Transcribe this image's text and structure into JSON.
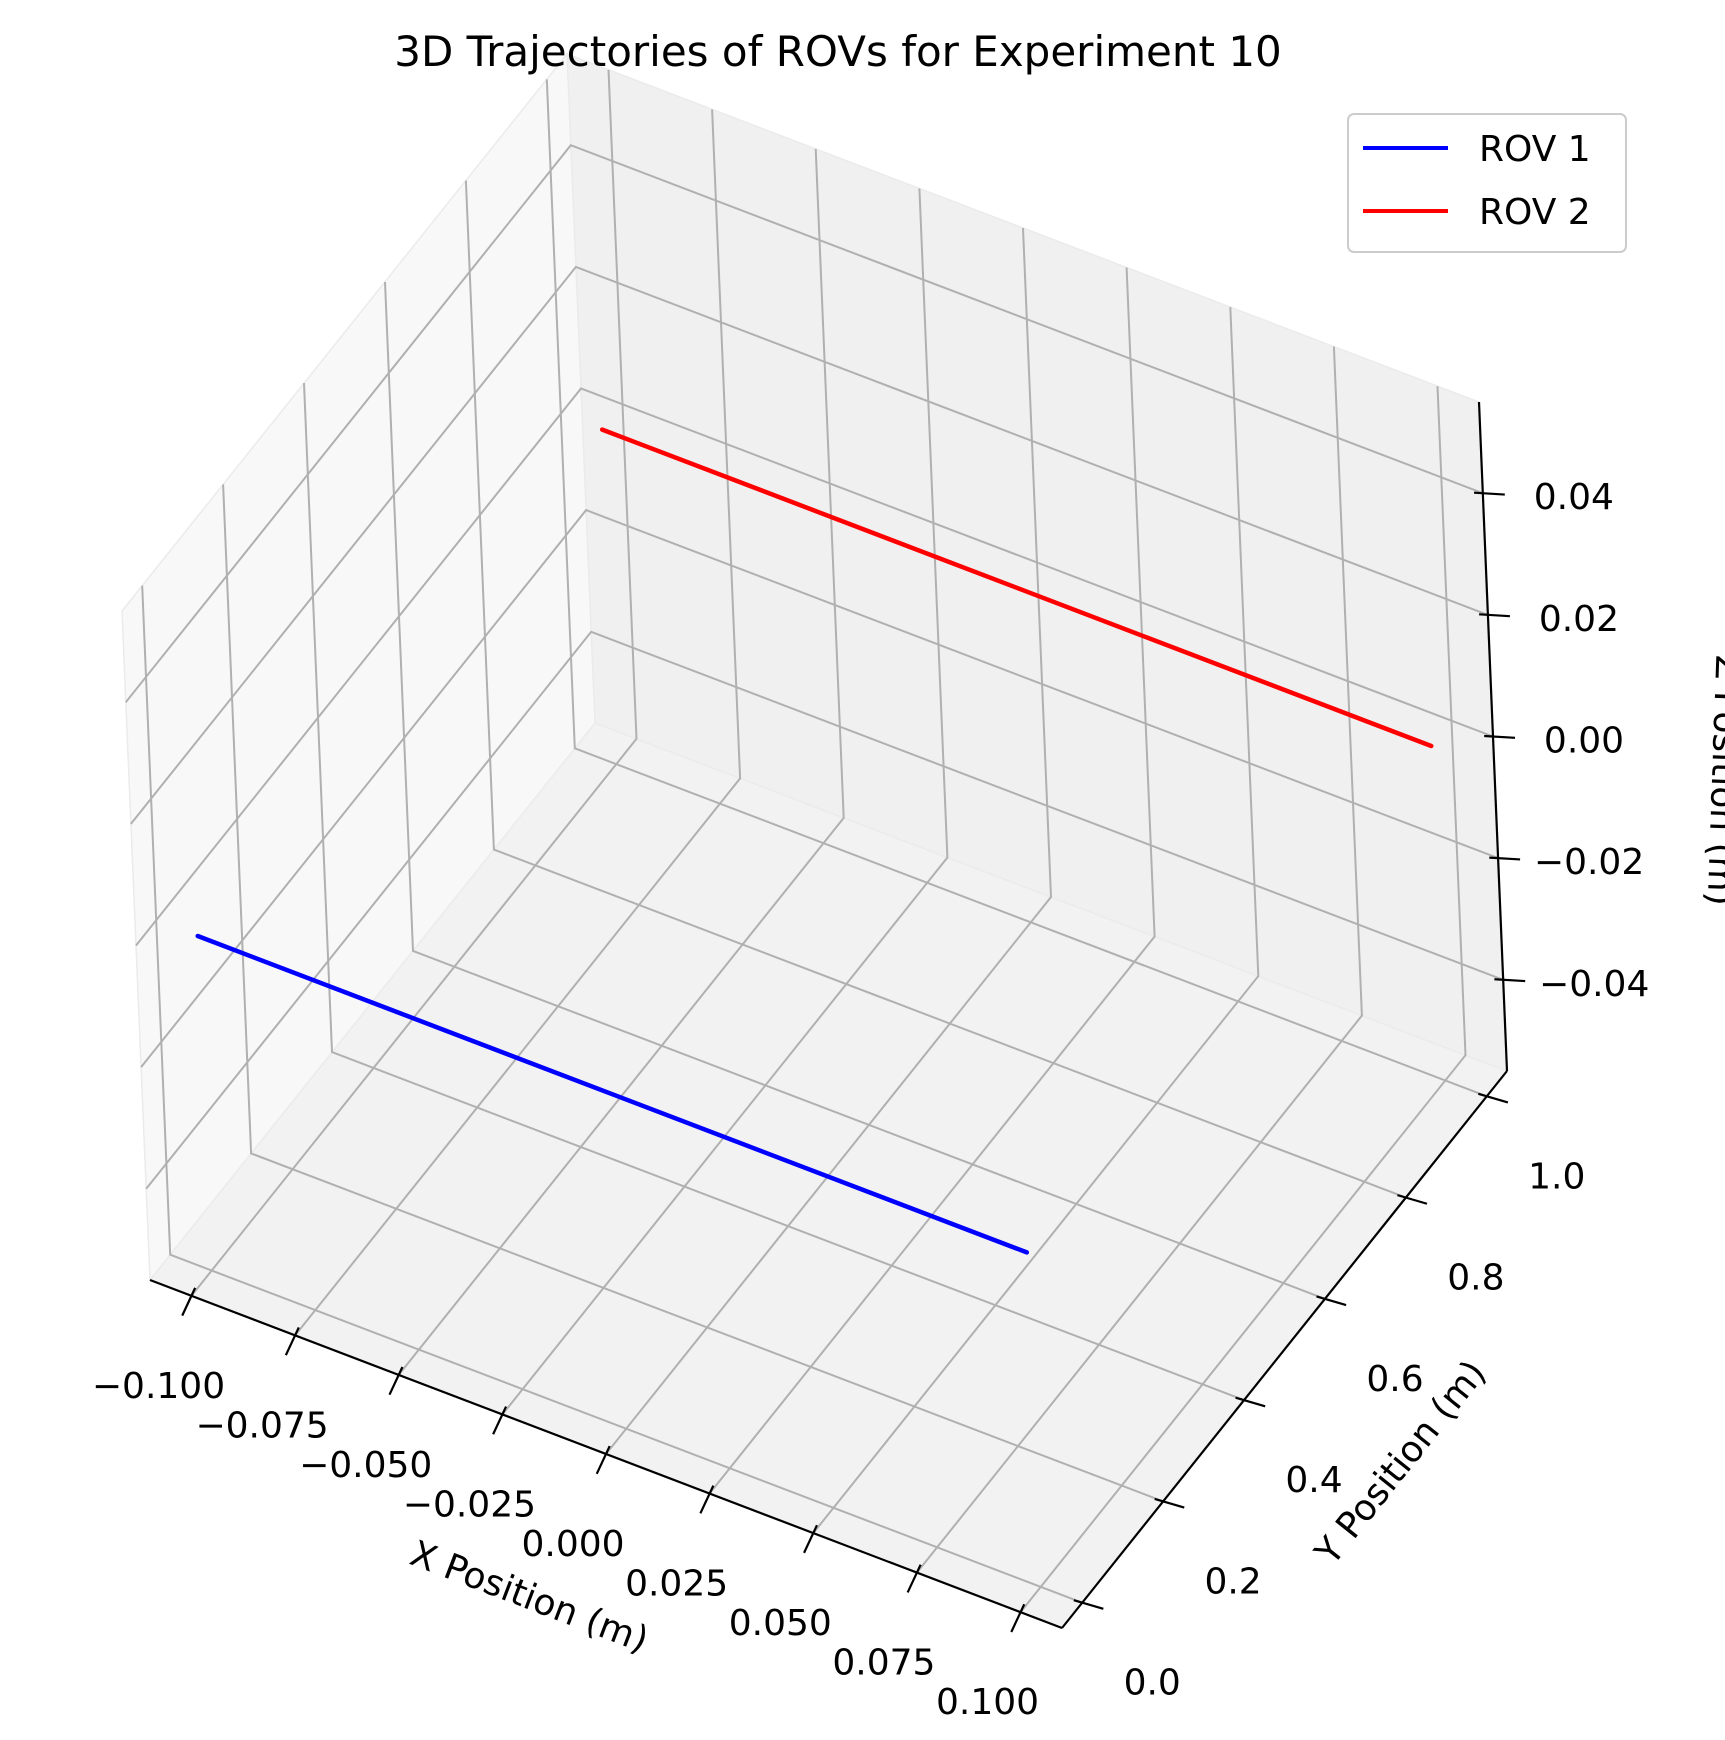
{
  "chart_data": {
    "type": "line",
    "projection": "3d",
    "title": "3D Trajectories of ROVs for Experiment 10",
    "xlabel": "X Position (m)",
    "ylabel": "Y Position (m)",
    "zlabel": "Z Position (m)",
    "xlim": [
      -0.11,
      0.11
    ],
    "ylim": [
      -0.05,
      1.05
    ],
    "zlim": [
      -0.055,
      0.055
    ],
    "xticks": [
      -0.1,
      -0.075,
      -0.05,
      -0.025,
      0.0,
      0.025,
      0.05,
      0.075,
      0.1
    ],
    "xtick_labels": [
      "−0.100",
      "−0.075",
      "−0.050",
      "−0.025",
      "0.000",
      "0.025",
      "0.050",
      "0.075",
      "0.100"
    ],
    "yticks": [
      0.0,
      0.2,
      0.4,
      0.6,
      0.8,
      1.0
    ],
    "ytick_labels": [
      "0.0",
      "0.2",
      "0.4",
      "0.6",
      "0.8",
      "1.0"
    ],
    "zticks": [
      -0.04,
      -0.02,
      0.0,
      0.02,
      0.04
    ],
    "ztick_labels": [
      "−0.04",
      "−0.02",
      "0.00",
      "0.02",
      "0.04"
    ],
    "grid": true,
    "legend_position": "top-right",
    "series": [
      {
        "name": "ROV 1",
        "color": "#0000ff",
        "x": [
          -0.1,
          0.1
        ],
        "y": [
          0.0,
          0.0
        ],
        "z": [
          0.0,
          0.0
        ]
      },
      {
        "name": "ROV 2",
        "color": "#ff0000",
        "x": [
          -0.1,
          0.1
        ],
        "y": [
          1.0,
          1.0
        ],
        "z": [
          0.0,
          0.0
        ]
      }
    ]
  }
}
